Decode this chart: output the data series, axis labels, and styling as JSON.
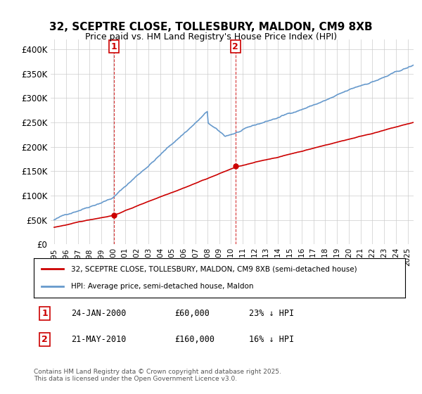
{
  "title": "32, SCEPTRE CLOSE, TOLLESBURY, MALDON, CM9 8XB",
  "subtitle": "Price paid vs. HM Land Registry's House Price Index (HPI)",
  "ylabel_ticks": [
    "£0",
    "£50K",
    "£100K",
    "£150K",
    "£200K",
    "£250K",
    "£300K",
    "£350K",
    "£400K"
  ],
  "ytick_values": [
    0,
    50000,
    100000,
    150000,
    200000,
    250000,
    300000,
    350000,
    400000
  ],
  "ylim": [
    0,
    420000
  ],
  "xlim_start": 1994.7,
  "xlim_end": 2025.5,
  "xtick_years": [
    1995,
    1996,
    1997,
    1998,
    1999,
    2000,
    2001,
    2002,
    2003,
    2004,
    2005,
    2006,
    2007,
    2008,
    2009,
    2010,
    2011,
    2012,
    2013,
    2014,
    2015,
    2016,
    2017,
    2018,
    2019,
    2020,
    2021,
    2022,
    2023,
    2024,
    2025
  ],
  "line1_color": "#cc0000",
  "line2_color": "#6699cc",
  "sale1_date": 2000.07,
  "sale1_price": 60000,
  "sale2_date": 2010.38,
  "sale2_price": 160000,
  "vline_color": "#cc0000",
  "legend1_label": "32, SCEPTRE CLOSE, TOLLESBURY, MALDON, CM9 8XB (semi-detached house)",
  "legend2_label": "HPI: Average price, semi-detached house, Maldon",
  "table_data": [
    {
      "num": "1",
      "date": "24-JAN-2000",
      "price": "£60,000",
      "hpi": "23% ↓ HPI"
    },
    {
      "num": "2",
      "date": "21-MAY-2010",
      "price": "£160,000",
      "hpi": "16% ↓ HPI"
    }
  ],
  "footnote": "Contains HM Land Registry data © Crown copyright and database right 2025.\nThis data is licensed under the Open Government Licence v3.0.",
  "background_color": "#ffffff",
  "grid_color": "#cccccc"
}
